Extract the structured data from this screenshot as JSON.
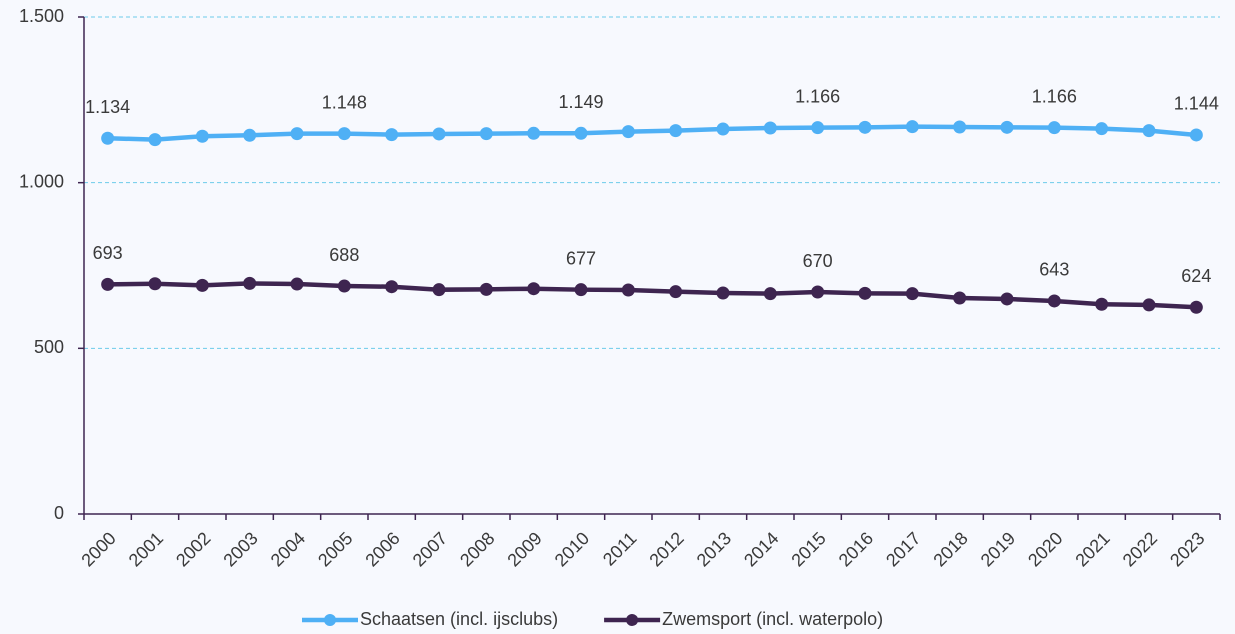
{
  "chart_data": {
    "type": "line",
    "categories": [
      "2000",
      "2001",
      "2002",
      "2003",
      "2004",
      "2005",
      "2006",
      "2007",
      "2008",
      "2009",
      "2010",
      "2011",
      "2012",
      "2013",
      "2014",
      "2015",
      "2016",
      "2017",
      "2018",
      "2019",
      "2020",
      "2021",
      "2022",
      "2023"
    ],
    "series": [
      {
        "name": "Schaatsen (incl. ijsclubs)",
        "color": "#4fb0f5",
        "values": [
          1134,
          1130,
          1140,
          1143,
          1148,
          1148,
          1145,
          1147,
          1148,
          1149,
          1149,
          1154,
          1157,
          1162,
          1165,
          1166,
          1167,
          1169,
          1168,
          1167,
          1166,
          1163,
          1157,
          1144
        ],
        "value_labels": [
          "1.134",
          null,
          null,
          null,
          null,
          "1.148",
          null,
          null,
          null,
          null,
          "1.149",
          null,
          null,
          null,
          null,
          "1.166",
          null,
          null,
          null,
          null,
          "1.166",
          null,
          null,
          "1.144"
        ]
      },
      {
        "name": "Zwemsport (incl. waterpolo)",
        "color": "#3e2550",
        "values": [
          693,
          695,
          690,
          696,
          694,
          688,
          686,
          677,
          678,
          680,
          677,
          676,
          671,
          667,
          665,
          670,
          666,
          665,
          652,
          649,
          643,
          633,
          631,
          624
        ],
        "value_labels": [
          "693",
          null,
          null,
          null,
          null,
          "688",
          null,
          null,
          null,
          null,
          "677",
          null,
          null,
          null,
          null,
          "670",
          null,
          null,
          null,
          null,
          "643",
          null,
          null,
          "624"
        ]
      }
    ],
    "ylim": [
      0,
      1500
    ],
    "yticks": [
      0,
      500,
      {
        "value": 1000,
        "label": "1.000"
      },
      {
        "value": 1500,
        "label": "1.500"
      }
    ],
    "grid": true,
    "legend": "bottom"
  }
}
